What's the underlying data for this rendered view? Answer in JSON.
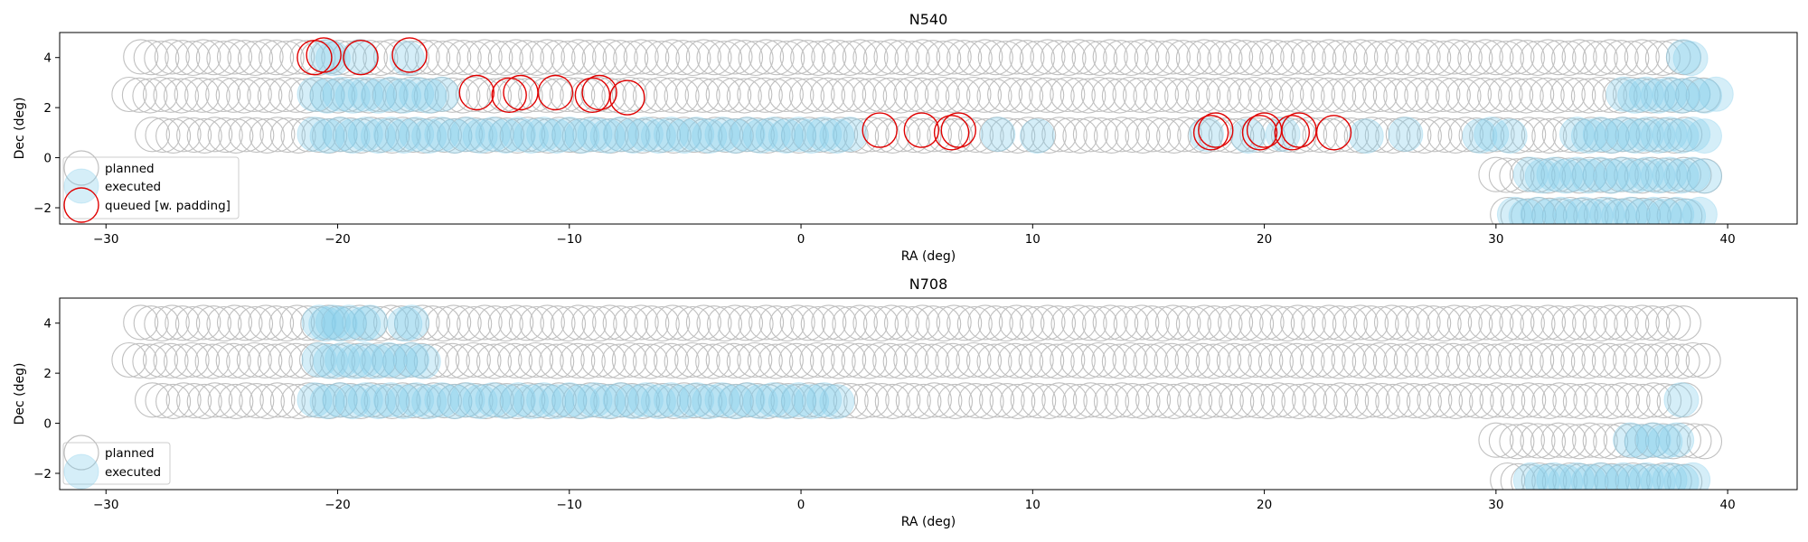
{
  "chart_data": [
    {
      "type": "scatter",
      "title": "N540",
      "xlabel": "RA (deg)",
      "ylabel": "Dec (deg)",
      "xlim": [
        -32,
        43
      ],
      "ylim": [
        -2.65,
        5.0
      ],
      "xticks": [
        "−30",
        "−20",
        "−10",
        "0",
        "10",
        "20",
        "30",
        "40"
      ],
      "yticks": [
        "−2",
        "0",
        "2",
        "4"
      ],
      "legend": {
        "placement": "lower-left",
        "entries": [
          "planned",
          "executed",
          "queued [w. padding]"
        ]
      },
      "series": [
        {
          "name": "planned",
          "style": "gray-outline",
          "rows": [
            {
              "dec": 4.0,
              "ra_start": -28.5,
              "ra_end": 38.5,
              "step": 0.45
            },
            {
              "dec": 2.5,
              "ra_start": -29.0,
              "ra_end": 39.0,
              "step": 0.45
            },
            {
              "dec": 0.9,
              "ra_start": -28.0,
              "ra_end": 38.5,
              "step": 0.45
            },
            {
              "dec": -0.7,
              "ra_start": 30.0,
              "ra_end": 39.0,
              "step": 0.45
            },
            {
              "dec": -2.3,
              "ra_start": 30.5,
              "ra_end": 38.5,
              "step": 0.45
            }
          ]
        },
        {
          "name": "executed",
          "style": "blue-filled",
          "segments": [
            {
              "dec": 4.0,
              "ra": [
                -20.5,
                -20.2,
                -19.0,
                -17.0,
                38.1,
                38.4
              ]
            },
            {
              "dec": 2.5,
              "ra_start": -21.0,
              "ra_end": -15.0,
              "step": 0.55
            },
            {
              "dec": 2.5,
              "ra_start": 35.5,
              "ra_end": 39.5,
              "step": 0.5
            },
            {
              "dec": 0.9,
              "ra_start": -21.0,
              "ra_end": 2.5,
              "step": 0.55
            },
            {
              "dec": 0.9,
              "ra": [
                8.5,
                10.2,
                17.5,
                19.3,
                20.8,
                24.4,
                26.1,
                29.3,
                29.8,
                30.6
              ]
            },
            {
              "dec": 0.9,
              "ra_start": 33.5,
              "ra_end": 39.0,
              "step": 0.5
            },
            {
              "dec": -0.7,
              "ra_start": 31.5,
              "ra_end": 39.0,
              "step": 0.5
            },
            {
              "dec": -2.3,
              "ra_start": 30.8,
              "ra_end": 38.8,
              "step": 0.5
            }
          ]
        },
        {
          "name": "queued [w. padding]",
          "style": "red-outline",
          "points": [
            [
              -21.0,
              4.0
            ],
            [
              -20.6,
              4.1
            ],
            [
              -19.0,
              4.0
            ],
            [
              -16.9,
              4.1
            ],
            [
              -14.0,
              2.6
            ],
            [
              -12.6,
              2.5
            ],
            [
              -12.1,
              2.6
            ],
            [
              -10.6,
              2.6
            ],
            [
              -9.0,
              2.5
            ],
            [
              -8.7,
              2.6
            ],
            [
              -7.5,
              2.4
            ],
            [
              3.4,
              1.1
            ],
            [
              5.2,
              1.1
            ],
            [
              6.5,
              1.0
            ],
            [
              6.8,
              1.1
            ],
            [
              17.7,
              1.0
            ],
            [
              17.9,
              1.1
            ],
            [
              19.8,
              1.0
            ],
            [
              20.0,
              1.1
            ],
            [
              21.2,
              1.0
            ],
            [
              21.5,
              1.1
            ],
            [
              23.0,
              1.0
            ]
          ]
        }
      ]
    },
    {
      "type": "scatter",
      "title": "N708",
      "xlabel": "RA (deg)",
      "ylabel": "Dec (deg)",
      "xlim": [
        -32,
        43
      ],
      "ylim": [
        -2.65,
        5.0
      ],
      "xticks": [
        "−30",
        "−20",
        "−10",
        "0",
        "10",
        "20",
        "30",
        "40"
      ],
      "yticks": [
        "−2",
        "0",
        "2",
        "4"
      ],
      "legend": {
        "placement": "lower-left",
        "entries": [
          "planned",
          "executed"
        ]
      },
      "series": [
        {
          "name": "planned",
          "style": "gray-outline",
          "rows": [
            {
              "dec": 4.0,
              "ra_start": -28.5,
              "ra_end": 38.5,
              "step": 0.45
            },
            {
              "dec": 2.5,
              "ra_start": -29.0,
              "ra_end": 39.0,
              "step": 0.45
            },
            {
              "dec": 0.9,
              "ra_start": -28.0,
              "ra_end": 38.5,
              "step": 0.45
            },
            {
              "dec": -0.7,
              "ra_start": 30.0,
              "ra_end": 39.0,
              "step": 0.45
            },
            {
              "dec": -2.3,
              "ra_start": 30.5,
              "ra_end": 38.5,
              "step": 0.45
            }
          ]
        },
        {
          "name": "executed",
          "style": "blue-filled",
          "segments": [
            {
              "dec": 4.0,
              "ra": [
                -20.8,
                -20.5,
                -20.2,
                -19.9,
                -19.5,
                -18.9,
                -18.6,
                -17.1,
                -16.8
              ]
            },
            {
              "dec": 2.5,
              "ra_start": -20.8,
              "ra_end": -16.0,
              "step": 0.5
            },
            {
              "dec": 0.9,
              "ra_start": -21.0,
              "ra_end": 2.0,
              "step": 0.55
            },
            {
              "dec": 0.9,
              "ra": [
                38.0
              ]
            },
            {
              "dec": -0.7,
              "ra_start": 35.8,
              "ra_end": 37.8,
              "step": 0.5
            },
            {
              "dec": -2.3,
              "ra_start": 31.5,
              "ra_end": 38.8,
              "step": 0.5
            }
          ]
        }
      ]
    }
  ],
  "colors": {
    "planned": "#c0c0c0",
    "executed_fill": "#87ceeb",
    "executed_alpha": 0.35,
    "queued": "#e00000",
    "axes": "#000000"
  }
}
